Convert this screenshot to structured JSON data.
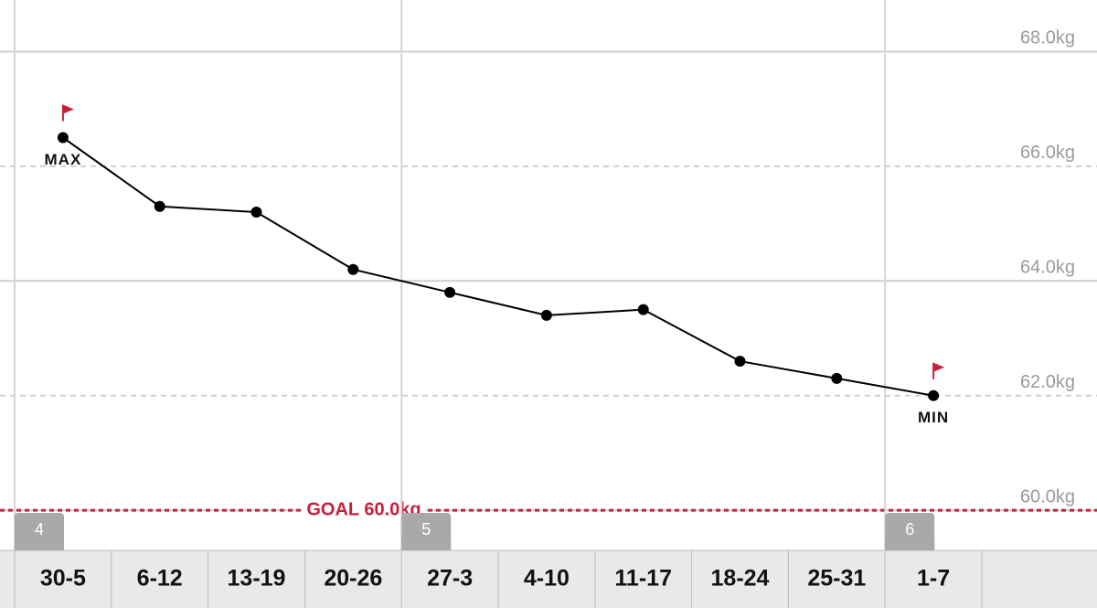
{
  "chart_data": {
    "type": "line",
    "categories": [
      "30-5",
      "6-12",
      "13-19",
      "20-26",
      "27-3",
      "4-10",
      "11-17",
      "18-24",
      "25-31",
      "1-7"
    ],
    "periods": [
      "4",
      null,
      null,
      null,
      "5",
      null,
      null,
      null,
      null,
      "6"
    ],
    "values": [
      66.5,
      65.3,
      65.2,
      64.2,
      63.8,
      63.4,
      63.5,
      62.6,
      62.3,
      62.0
    ],
    "point_labels": [
      "MAX",
      null,
      null,
      null,
      null,
      null,
      null,
      null,
      null,
      "MIN"
    ],
    "color": "#000000",
    "accent_color": "#c8203a",
    "ylim": [
      59.3,
      68.9
    ],
    "yticks": [
      {
        "value": 60,
        "label": "60.0kg"
      },
      {
        "value": 62,
        "label": "62.0kg"
      },
      {
        "value": 64,
        "label": "64.0kg"
      },
      {
        "value": 66,
        "label": "66.0kg"
      },
      {
        "value": 68,
        "label": "68.0kg"
      }
    ],
    "goal": {
      "value": 60,
      "label": "GOAL 60.0kg"
    },
    "grid": true
  }
}
